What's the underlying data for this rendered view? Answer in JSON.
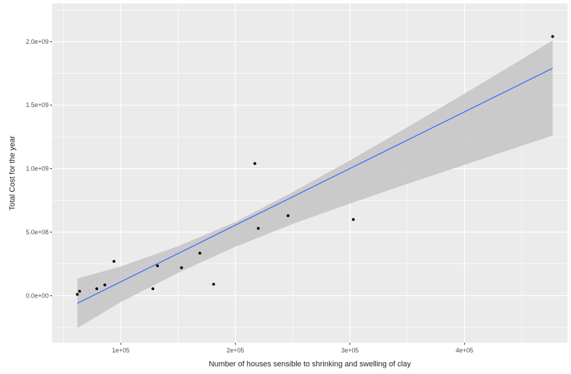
{
  "chart_data": {
    "type": "scatter",
    "title": "",
    "xlabel": "Number of houses sensible to shrinking and swelling of clay",
    "ylabel": "Total Cost for the year",
    "xlim": [
      40000,
      490000
    ],
    "ylim": [
      -370000000,
      2300000000
    ],
    "x_major_ticks": [
      100000,
      200000,
      300000,
      400000
    ],
    "x_tick_labels": [
      "1e+05",
      "2e+05",
      "3e+05",
      "4e+05"
    ],
    "y_major_ticks": [
      0,
      500000000,
      1000000000,
      1500000000,
      2000000000
    ],
    "y_tick_labels": [
      "0.0e+00",
      "5.0e+08",
      "1.0e+09",
      "1.5e+09",
      "2.0e+09"
    ],
    "points": [
      {
        "x": 62000,
        "y": 10000000
      },
      {
        "x": 64000,
        "y": 35000000
      },
      {
        "x": 79000,
        "y": 55000000
      },
      {
        "x": 86000,
        "y": 85000000
      },
      {
        "x": 94000,
        "y": 270000000
      },
      {
        "x": 128000,
        "y": 55000000
      },
      {
        "x": 132000,
        "y": 235000000
      },
      {
        "x": 153000,
        "y": 220000000
      },
      {
        "x": 169000,
        "y": 335000000
      },
      {
        "x": 181000,
        "y": 90000000
      },
      {
        "x": 217000,
        "y": 1040000000
      },
      {
        "x": 220000,
        "y": 530000000
      },
      {
        "x": 246000,
        "y": 630000000
      },
      {
        "x": 303000,
        "y": 600000000
      },
      {
        "x": 477000,
        "y": 2040000000
      }
    ],
    "fit": {
      "method": "lm",
      "x": [
        62000,
        477000
      ],
      "y": [
        -60000000,
        1790000000
      ]
    },
    "confidence_band": {
      "x": [
        62000,
        100000,
        150000,
        200000,
        250000,
        300000,
        350000,
        400000,
        450000,
        477000
      ],
      "lower": [
        -255000000,
        -50000000,
        180000000,
        385000000,
        565000000,
        725000000,
        880000000,
        1030000000,
        1180000000,
        1260000000
      ],
      "upper": [
        135000000,
        230000000,
        390000000,
        580000000,
        815000000,
        1065000000,
        1325000000,
        1590000000,
        1860000000,
        2010000000
      ]
    },
    "colors": {
      "panel": "#EBEBEB",
      "grid": "#FFFFFF",
      "points": "#000000",
      "line": "#3366FF",
      "band": "#C7C7C7"
    }
  }
}
